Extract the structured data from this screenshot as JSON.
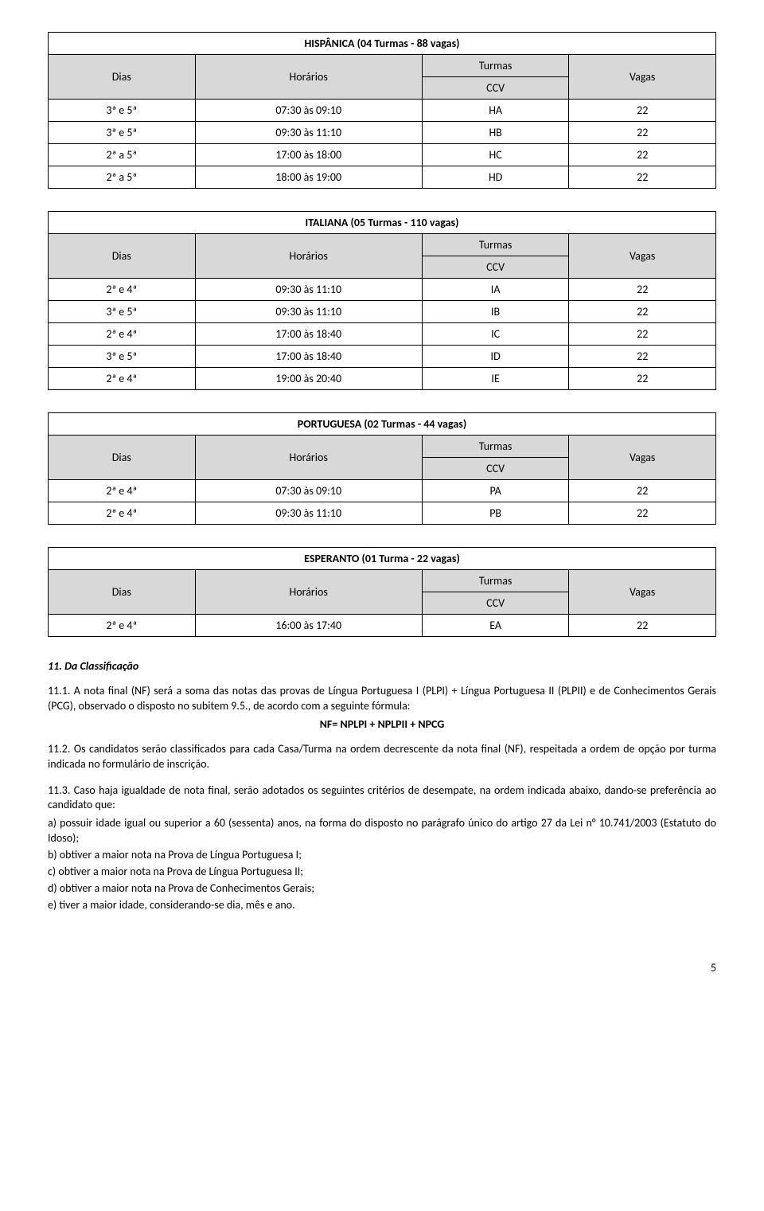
{
  "tables": [
    {
      "title": "HISPÂNICA (04 Turmas - 88 vagas)",
      "headers": {
        "dias": "Dias",
        "horarios": "Horários",
        "turmas": "Turmas",
        "ccv": "CCV",
        "vagas": "Vagas"
      },
      "rows": [
        {
          "dias": "3ª e 5ª",
          "horarios": "07:30 às 09:10",
          "ccv": "HA",
          "vagas": "22"
        },
        {
          "dias": "3ª e 5ª",
          "horarios": "09:30 às 11:10",
          "ccv": "HB",
          "vagas": "22"
        },
        {
          "dias": "2ª a 5ª",
          "horarios": "17:00 às 18:00",
          "ccv": "HC",
          "vagas": "22"
        },
        {
          "dias": "2ª a 5ª",
          "horarios": "18:00 às 19:00",
          "ccv": "HD",
          "vagas": "22"
        }
      ]
    },
    {
      "title": "ITALIANA (05 Turmas - 110 vagas)",
      "headers": {
        "dias": "Dias",
        "horarios": "Horários",
        "turmas": "Turmas",
        "ccv": "CCV",
        "vagas": "Vagas"
      },
      "rows": [
        {
          "dias": "2ª e 4ª",
          "horarios": "09:30 às 11:10",
          "ccv": "IA",
          "vagas": "22"
        },
        {
          "dias": "3ª e 5ª",
          "horarios": "09:30 às 11:10",
          "ccv": "IB",
          "vagas": "22"
        },
        {
          "dias": "2ª e 4ª",
          "horarios": "17:00 às 18:40",
          "ccv": "IC",
          "vagas": "22"
        },
        {
          "dias": "3ª e 5ª",
          "horarios": "17:00 às 18:40",
          "ccv": "ID",
          "vagas": "22"
        },
        {
          "dias": "2ª e 4ª",
          "horarios": "19:00 às 20:40",
          "ccv": "IE",
          "vagas": "22"
        }
      ]
    },
    {
      "title": "PORTUGUESA (02 Turmas - 44 vagas)",
      "headers": {
        "dias": "Dias",
        "horarios": "Horários",
        "turmas": "Turmas",
        "ccv": "CCV",
        "vagas": "Vagas"
      },
      "rows": [
        {
          "dias": "2ª e 4ª",
          "horarios": "07:30 às 09:10",
          "ccv": "PA",
          "vagas": "22"
        },
        {
          "dias": "2ª e 4ª",
          "horarios": "09:30 às 11:10",
          "ccv": "PB",
          "vagas": "22"
        }
      ]
    },
    {
      "title": "ESPERANTO (01 Turma - 22 vagas)",
      "headers": {
        "dias": "Dias",
        "horarios": "Horários",
        "turmas": "Turmas",
        "ccv": "CCV",
        "vagas": "Vagas"
      },
      "rows": [
        {
          "dias": "2ª e 4ª",
          "horarios": "16:00 às 17:40",
          "ccv": "EA",
          "vagas": "22"
        }
      ]
    }
  ],
  "section_heading": "11. Da Classificação",
  "para_11_1": "11.1. A nota final (NF) será a soma das notas das provas de Língua Portuguesa I (PLPI) + Língua Portuguesa II (PLPII) e de Conhecimentos Gerais (PCG), observado o disposto no subitem 9.5., de acordo com a seguinte fórmula:",
  "formula": "NF= NPLPI + NPLPII + NPCG",
  "para_11_2": "11.2. Os candidatos serão classificados para cada Casa/Turma na ordem decrescente da nota final (NF), respeitada a ordem de opção por turma indicada no formulário de inscrição.",
  "para_11_3": "11.3. Caso haja igualdade de nota final, serão adotados os seguintes critérios de desempate, na ordem indicada abaixo, dando-se preferência ao candidato que:",
  "criteria": [
    "a) possuir idade igual ou superior a 60 (sessenta) anos, na forma do disposto no parágrafo único do artigo 27 da Lei n° 10.741/2003 (Estatuto do Idoso);",
    "b) obtiver a maior nota na Prova de Língua Portuguesa I;",
    "c) obtiver a maior nota na Prova de Língua Portuguesa II;",
    "d) obtiver a maior nota na Prova de Conhecimentos Gerais;",
    "e) tiver a maior idade, considerando-se dia, mês e ano."
  ],
  "page_num": "5",
  "colors": {
    "header_bg": "#d8d8d8",
    "border": "#000000",
    "text": "#000000",
    "page_bg": "#ffffff"
  }
}
